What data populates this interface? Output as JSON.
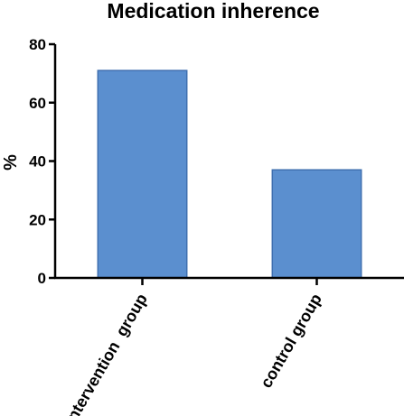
{
  "chart_data": {
    "type": "bar",
    "title": "Medication inherence",
    "ylabel": "%",
    "xlabel": "",
    "categories": [
      "intervention  group",
      "control group"
    ],
    "values": [
      71,
      37
    ],
    "ylim": [
      0,
      80
    ],
    "yticks": [
      0,
      20,
      40,
      60,
      80
    ],
    "bar_color": "#5b8fcf",
    "bar_edge_color": "#3f6fb0",
    "grid": false,
    "legend": "none"
  }
}
